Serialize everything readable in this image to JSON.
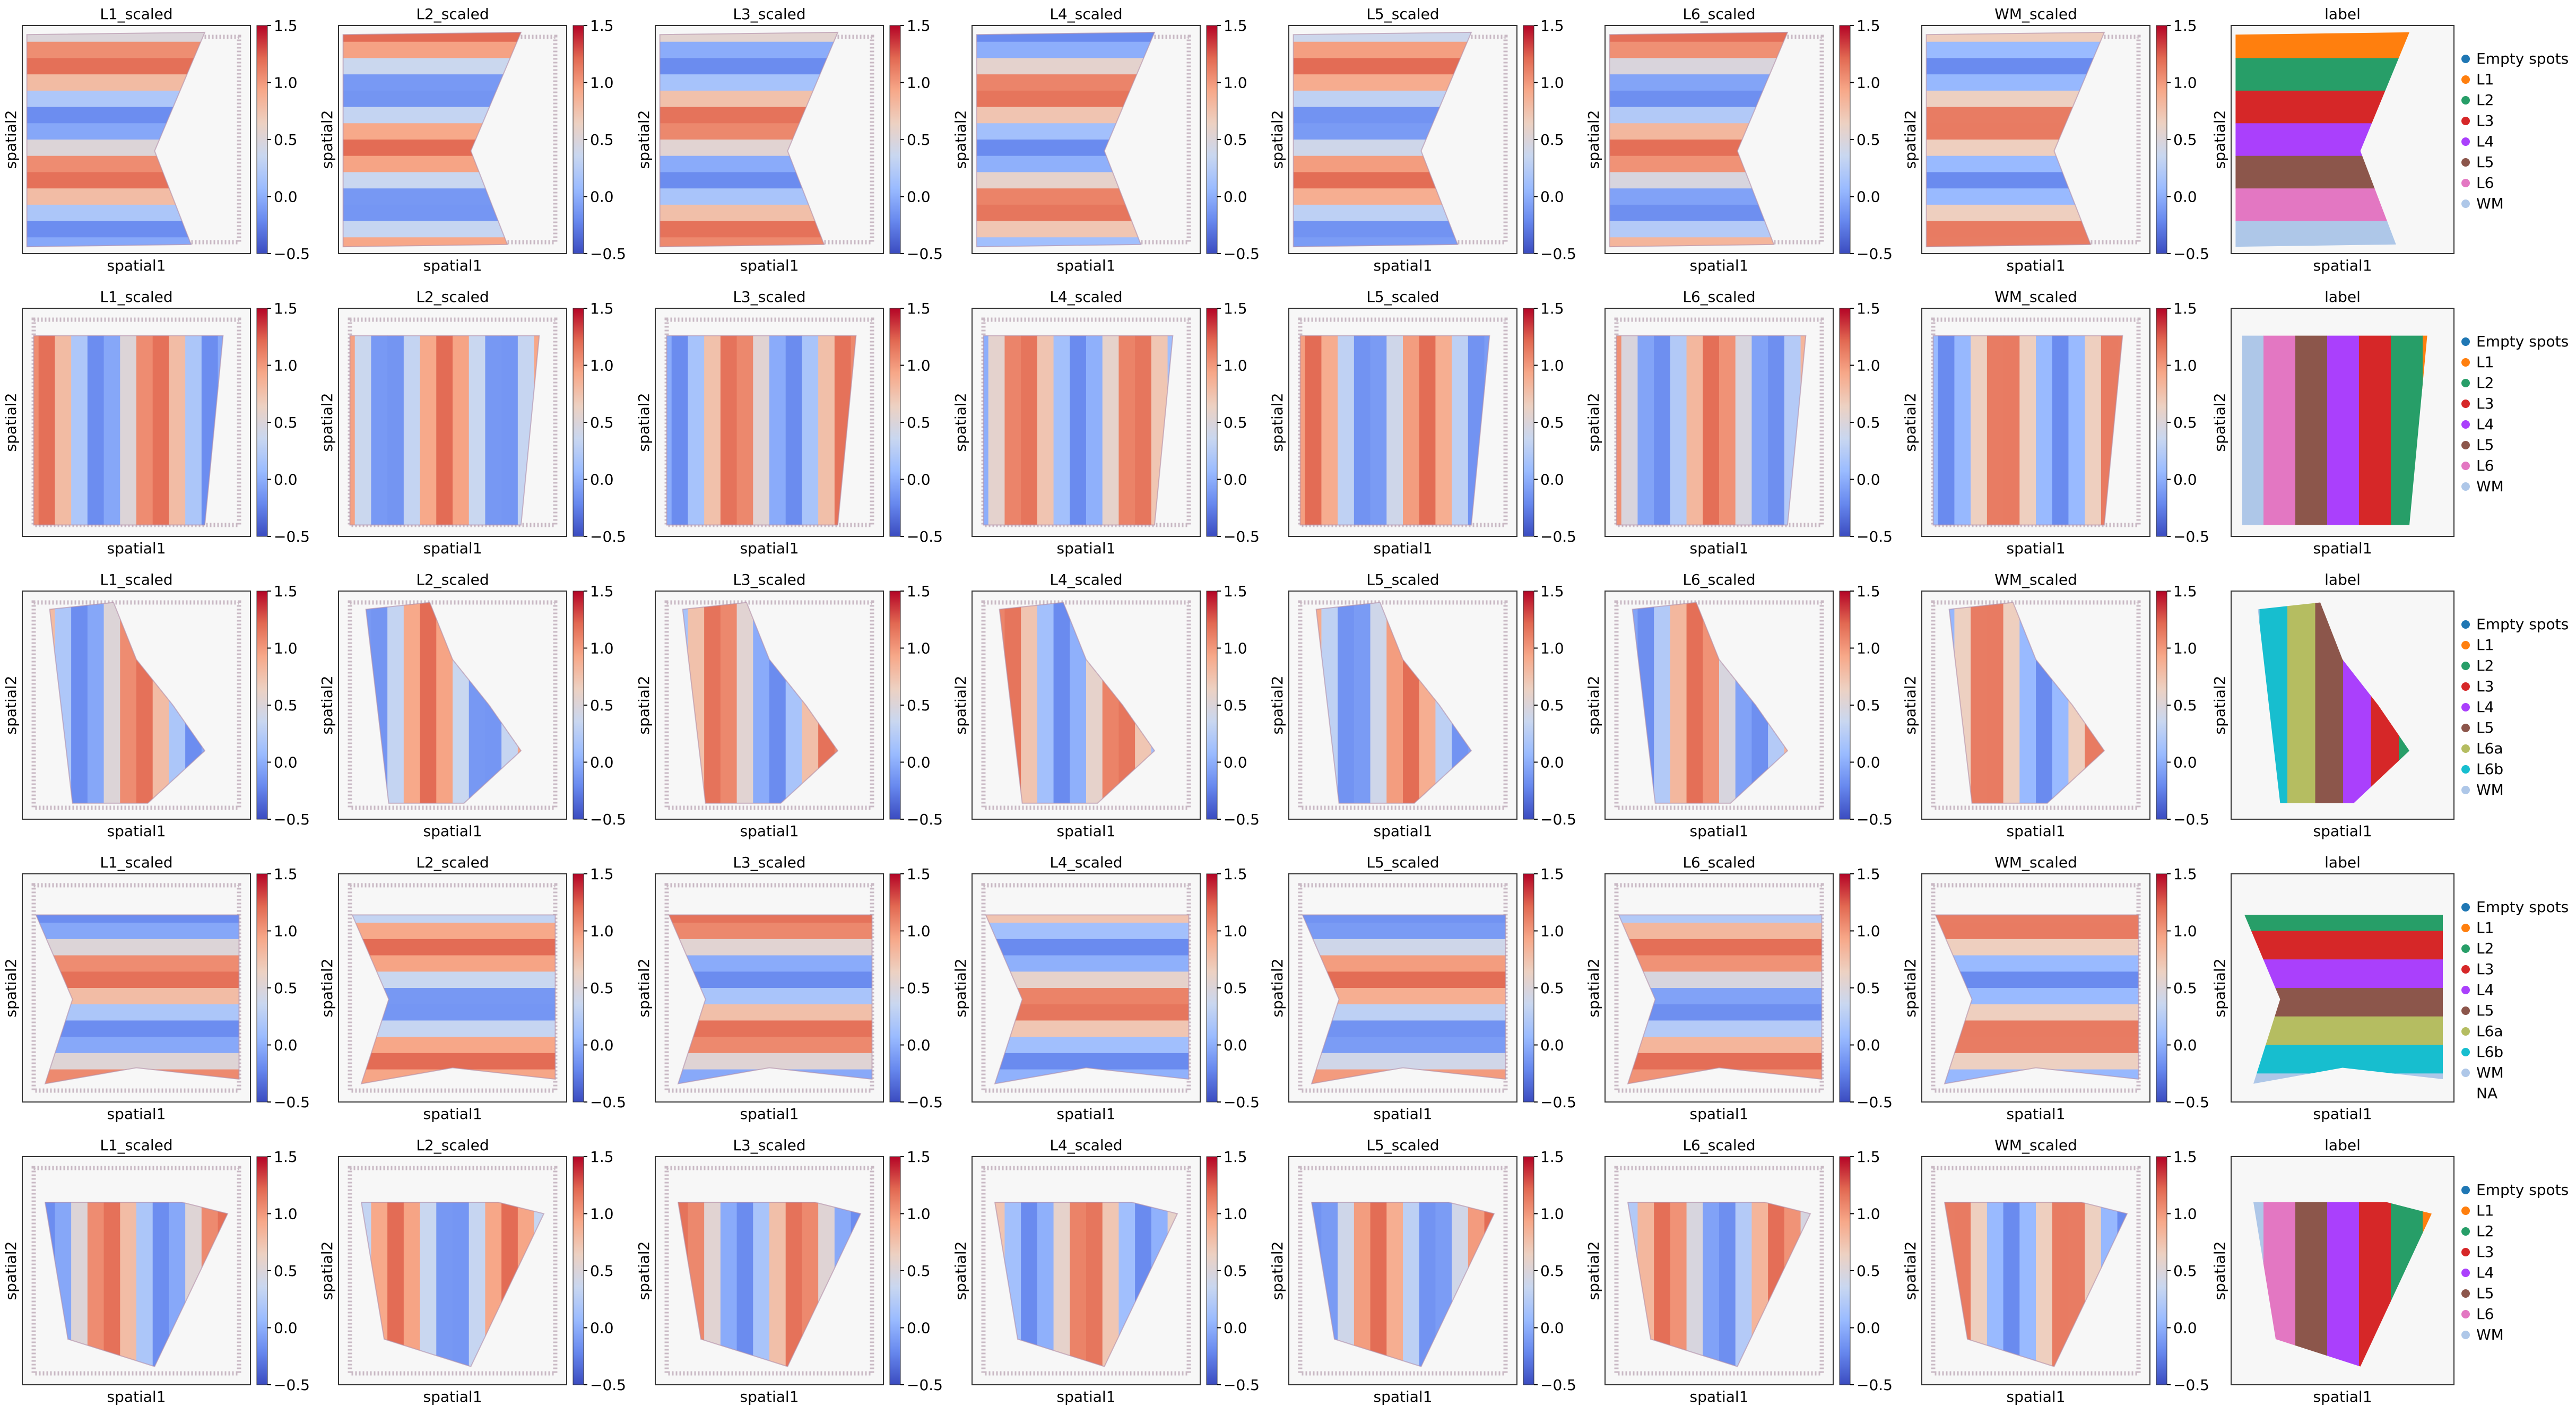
{
  "figure": {
    "xlabel": "spatial1",
    "ylabel": "spatial2"
  },
  "colorbar": {
    "ticks": [
      "1.5",
      "1.0",
      "0.5",
      "0.0",
      "−0.5"
    ],
    "values": [
      1.5,
      1.0,
      0.5,
      0.0,
      -0.5
    ],
    "range": [
      -0.5,
      1.5
    ],
    "colormap": [
      "#3b4cc0",
      "#6788ee",
      "#9abbff",
      "#c9d7f0",
      "#edd1c2",
      "#f7a889",
      "#e26952",
      "#b40426"
    ]
  },
  "panel_titles": [
    "L1_scaled",
    "L2_scaled",
    "L3_scaled",
    "L4_scaled",
    "L5_scaled",
    "L6_scaled",
    "WM_scaled",
    "label"
  ],
  "legend_colors": {
    "Empty spots": "#1f77b4",
    "L1": "#ff7f0e",
    "L2": "#279e68",
    "L3": "#d62728",
    "L4": "#aa40fc",
    "L5": "#8c564b",
    "L6": "#e377c2",
    "L6a": "#b5bd61",
    "L6b": "#17becf",
    "WM": "#aec7e8",
    "NA": "#ffffff"
  },
  "chart_data": [
    {
      "type": "heatmap",
      "row": 1,
      "panels": [
        "L1_scaled",
        "L2_scaled",
        "L3_scaled",
        "L4_scaled",
        "L5_scaled",
        "L6_scaled",
        "WM_scaled"
      ],
      "value_range": [
        -0.5,
        1.5
      ],
      "xlabel": "spatial1",
      "ylabel": "spatial2",
      "label_panel": {
        "title": "label",
        "legend": [
          "Empty spots",
          "L1",
          "L2",
          "L3",
          "L4",
          "L5",
          "L6",
          "WM"
        ]
      }
    },
    {
      "type": "heatmap",
      "row": 2,
      "panels": [
        "L1_scaled",
        "L2_scaled",
        "L3_scaled",
        "L4_scaled",
        "L5_scaled",
        "L6_scaled",
        "WM_scaled"
      ],
      "value_range": [
        -0.5,
        1.5
      ],
      "xlabel": "spatial1",
      "ylabel": "spatial2",
      "label_panel": {
        "title": "label",
        "legend": [
          "Empty spots",
          "L1",
          "L2",
          "L3",
          "L4",
          "L5",
          "L6",
          "WM"
        ]
      }
    },
    {
      "type": "heatmap",
      "row": 3,
      "panels": [
        "L1_scaled",
        "L2_scaled",
        "L3_scaled",
        "L4_scaled",
        "L5_scaled",
        "L6_scaled",
        "WM_scaled"
      ],
      "value_range": [
        -0.5,
        1.5
      ],
      "xlabel": "spatial1",
      "ylabel": "spatial2",
      "label_panel": {
        "title": "label",
        "legend": [
          "Empty spots",
          "L1",
          "L2",
          "L3",
          "L4",
          "L5",
          "L6a",
          "L6b",
          "WM"
        ]
      }
    },
    {
      "type": "heatmap",
      "row": 4,
      "panels": [
        "L1_scaled",
        "L2_scaled",
        "L3_scaled",
        "L4_scaled",
        "L5_scaled",
        "L6_scaled",
        "WM_scaled"
      ],
      "value_range": [
        -0.5,
        1.5
      ],
      "xlabel": "spatial1",
      "ylabel": "spatial2",
      "label_panel": {
        "title": "label",
        "legend": [
          "Empty spots",
          "L1",
          "L2",
          "L3",
          "L4",
          "L5",
          "L6a",
          "L6b",
          "WM",
          "NA"
        ]
      }
    },
    {
      "type": "heatmap",
      "row": 5,
      "panels": [
        "L1_scaled",
        "L2_scaled",
        "L3_scaled",
        "L4_scaled",
        "L5_scaled",
        "L6_scaled",
        "WM_scaled"
      ],
      "value_range": [
        -0.5,
        1.5
      ],
      "xlabel": "spatial1",
      "ylabel": "spatial2",
      "label_panel": {
        "title": "label",
        "legend": [
          "Empty spots",
          "L1",
          "L2",
          "L3",
          "L4",
          "L5",
          "L6",
          "WM"
        ]
      }
    }
  ]
}
